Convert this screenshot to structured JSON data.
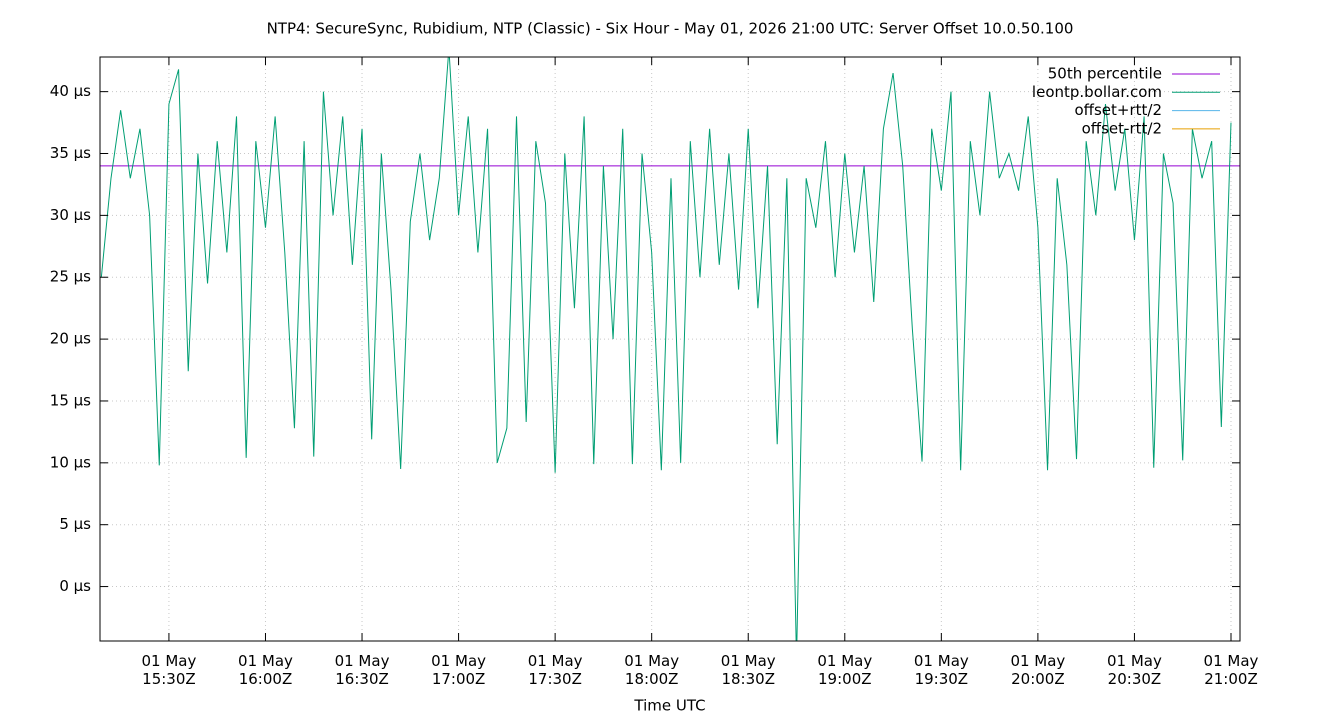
{
  "chart_data": {
    "type": "line",
    "title": "NTP4: SecureSync, Rubidium, NTP (Classic) - Six Hour - May 01, 2026 21:00 UTC: Server Offset 10.0.50.100",
    "x_label": "Time UTC",
    "xlim": [
      "15:08:35",
      "21:02:48"
    ],
    "xticks": [
      {
        "value": "15:30",
        "label": "01 May 15:30Z"
      },
      {
        "value": "16:00",
        "label": "01 May 16:00Z"
      },
      {
        "value": "16:30",
        "label": "01 May 16:30Z"
      },
      {
        "value": "17:00",
        "label": "01 May 17:00Z"
      },
      {
        "value": "17:30",
        "label": "01 May 17:30Z"
      },
      {
        "value": "18:00",
        "label": "01 May 18:00Z"
      },
      {
        "value": "18:30",
        "label": "01 May 18:30Z"
      },
      {
        "value": "19:00",
        "label": "01 May 19:00Z"
      },
      {
        "value": "19:30",
        "label": "01 May 19:30Z"
      },
      {
        "value": "20:00",
        "label": "01 May 20:00Z"
      },
      {
        "value": "20:30",
        "label": "01 May 20:30Z"
      },
      {
        "value": "21:00",
        "label": "01 May 21:00Z"
      }
    ],
    "ylim": [
      -4.4,
      42.8
    ],
    "yticks": [
      {
        "value": 0,
        "label": "0 µs"
      },
      {
        "value": 5,
        "label": "5 µs"
      },
      {
        "value": 10,
        "label": "10 µs"
      },
      {
        "value": 15,
        "label": "15 µs"
      },
      {
        "value": 20,
        "label": "20 µs"
      },
      {
        "value": 25,
        "label": "25 µs"
      },
      {
        "value": 30,
        "label": "30 µs"
      },
      {
        "value": 35,
        "label": "35 µs"
      },
      {
        "value": 40,
        "label": "40 µs"
      }
    ],
    "grid": true,
    "legend": "top-right",
    "x": [
      "15:09",
      "15:12",
      "15:15",
      "15:18",
      "15:21",
      "15:24",
      "15:27",
      "15:30",
      "15:33",
      "15:36",
      "15:39",
      "15:42",
      "15:45",
      "15:48",
      "15:51",
      "15:54",
      "15:57",
      "16:00",
      "16:03",
      "16:06",
      "16:09",
      "16:12",
      "16:15",
      "16:18",
      "16:21",
      "16:24",
      "16:27",
      "16:30",
      "16:33",
      "16:36",
      "16:39",
      "16:42",
      "16:45",
      "16:48",
      "16:51",
      "16:54",
      "16:57",
      "17:00",
      "17:03",
      "17:06",
      "17:09",
      "17:12",
      "17:15",
      "17:18",
      "17:21",
      "17:24",
      "17:27",
      "17:30",
      "17:33",
      "17:36",
      "17:39",
      "17:42",
      "17:45",
      "17:48",
      "17:51",
      "17:54",
      "17:57",
      "18:00",
      "18:03",
      "18:06",
      "18:09",
      "18:12",
      "18:15",
      "18:18",
      "18:21",
      "18:24",
      "18:27",
      "18:30",
      "18:33",
      "18:36",
      "18:39",
      "18:42",
      "18:45",
      "18:48",
      "18:51",
      "18:54",
      "18:57",
      "19:00",
      "19:03",
      "19:06",
      "19:09",
      "19:12",
      "19:15",
      "19:18",
      "19:21",
      "19:24",
      "19:27",
      "19:30",
      "19:33",
      "19:36",
      "19:39",
      "19:42",
      "19:45",
      "19:48",
      "19:51",
      "19:54",
      "19:57",
      "20:00",
      "20:03",
      "20:06",
      "20:09",
      "20:12",
      "20:15",
      "20:18",
      "20:21",
      "20:24",
      "20:27",
      "20:30",
      "20:33",
      "20:36",
      "20:39",
      "20:42",
      "20:45",
      "20:48",
      "20:51",
      "20:54",
      "20:57",
      "21:00"
    ],
    "series": [
      {
        "name": "50th percentile",
        "color": "#9400d3",
        "value": 34
      },
      {
        "name": "leontp.bollar.com",
        "color": "#009e73",
        "values": [
          25,
          33,
          38.5,
          33,
          37,
          30,
          9.8,
          39,
          41.8,
          17.4,
          35,
          24.5,
          36,
          27,
          38,
          10.4,
          36,
          29,
          38,
          27,
          12.8,
          36,
          10.5,
          40,
          30,
          38,
          26,
          37,
          11.9,
          35,
          24,
          9.5,
          29.5,
          35,
          28,
          33,
          43.5,
          30,
          38,
          27,
          37,
          10,
          12.8,
          38,
          13.3,
          36,
          31,
          9.2,
          35,
          22.5,
          38,
          9.9,
          34,
          20,
          37,
          9.9,
          35,
          27,
          9.4,
          33,
          10,
          36,
          25,
          37,
          26,
          35,
          24,
          37,
          22.5,
          34,
          11.5,
          33,
          -6,
          33,
          29,
          36,
          25,
          35,
          27,
          34,
          23,
          37,
          41.5,
          34,
          20.8,
          10.1,
          37,
          32,
          40,
          9.4,
          36,
          30,
          40,
          33,
          35,
          32,
          38,
          29,
          9.4,
          33,
          26,
          10.3,
          36,
          30,
          39,
          32,
          37,
          28,
          38,
          9.6,
          35,
          31,
          10.2,
          37,
          33,
          36,
          12.9,
          37.5
        ]
      },
      {
        "name": "offset+rtt/2",
        "color": "#56b4e9"
      },
      {
        "name": "offset-rtt/2",
        "color": "#e69f00"
      }
    ]
  }
}
